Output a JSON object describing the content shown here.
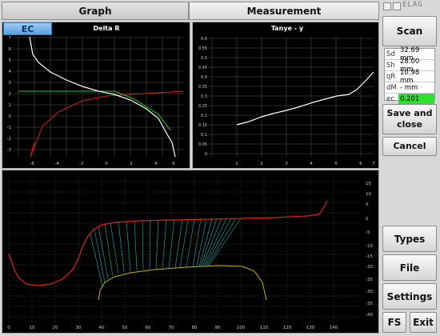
{
  "tabs": {
    "graph": "Graph",
    "measurement": "Measurement"
  },
  "ec_button": "EC",
  "logo": "ELAG",
  "left_chart": {
    "title": "Delta R",
    "xticks": [
      "-6",
      "-4",
      "-2",
      "0",
      "2",
      "4",
      "6"
    ],
    "yticks": [
      "7",
      "6",
      "5",
      "4",
      "3",
      "2",
      "1",
      "0",
      "-1",
      "-2",
      "-3"
    ]
  },
  "right_chart": {
    "title": "Tanye - y",
    "xticks": [
      "1",
      "2",
      "3",
      "4",
      "5",
      "6",
      "7"
    ],
    "yticks": [
      "0.6",
      "0.55",
      "0.5",
      "0.45",
      "0.4",
      "0.35",
      "0.3",
      "0.25",
      "0.2",
      "0.15",
      "0.1",
      "0.05",
      "0"
    ]
  },
  "bottom_chart": {
    "xticks": [
      "0",
      "10",
      "20",
      "30",
      "40",
      "50",
      "60",
      "70",
      "80",
      "90",
      "100",
      "110",
      "120",
      "130",
      "140"
    ],
    "yticks": [
      "15",
      "10",
      "5",
      "0",
      "-5",
      "-10",
      "-15",
      "-20",
      "-25",
      "-30",
      "-35",
      "-40"
    ]
  },
  "info": {
    "sd": {
      "key": "Sd",
      "value": "32.69 mm"
    },
    "sh": {
      "key": "Sh",
      "value": "28.00 mm"
    },
    "qr": {
      "key": "qR",
      "value": "10.98 mm"
    },
    "dm": {
      "key": "dM",
      "value": "- mm"
    },
    "ec": {
      "key": "ec",
      "value": "0.201"
    }
  },
  "buttons": {
    "scan": "Scan",
    "save": "Save and close",
    "cancel": "Cancel",
    "types": "Types",
    "file": "File",
    "settings": "Settings",
    "fs": "FS",
    "exit": "Exit"
  },
  "colors": {
    "ec_highlight": "#2ee02e",
    "profile": "#e02020",
    "wheel": "#c8b400",
    "contact": "#1fd6d6"
  }
}
